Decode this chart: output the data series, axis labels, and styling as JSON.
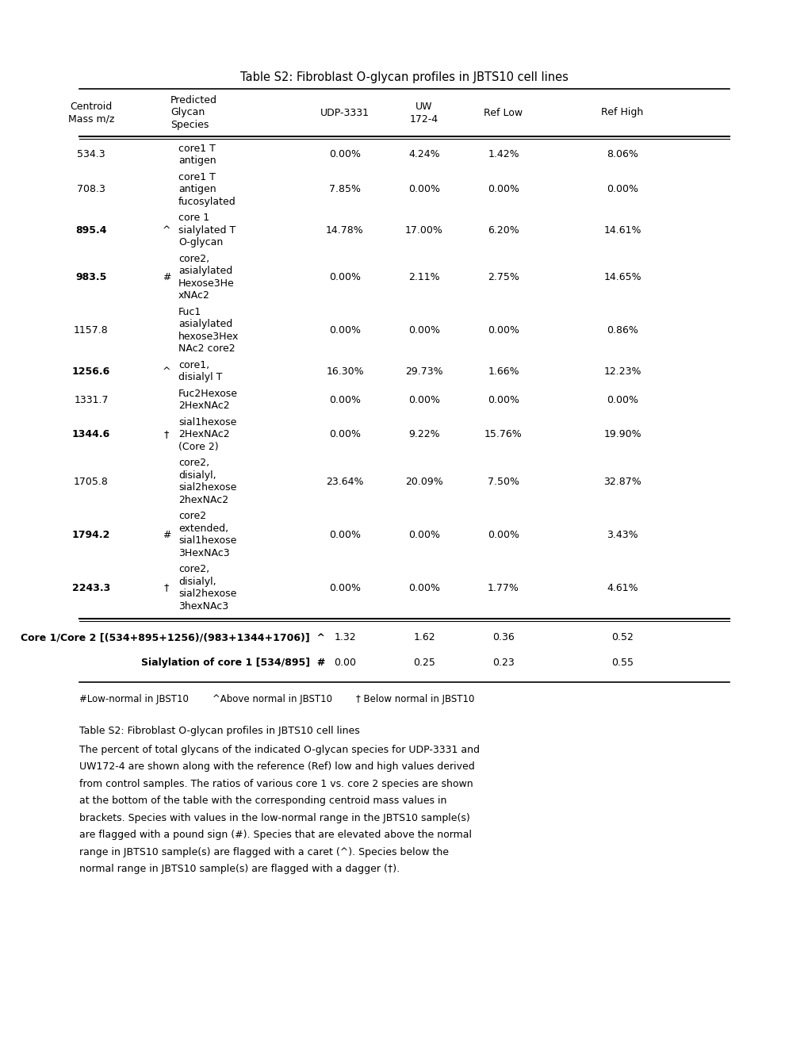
{
  "title": "Table S2: Fibroblast O-glycan profiles in JBTS10 cell lines",
  "rows": [
    {
      "mass": "534.3",
      "mass_bold": false,
      "flag": "",
      "species": "core1 T\nantigen",
      "udp": "0.00%",
      "uw": "4.24%",
      "ref_low": "1.42%",
      "ref_high": "8.06%"
    },
    {
      "mass": "708.3",
      "mass_bold": false,
      "flag": "",
      "species": "core1 T\nantigen\nfucosylated",
      "udp": "7.85%",
      "uw": "0.00%",
      "ref_low": "0.00%",
      "ref_high": "0.00%"
    },
    {
      "mass": "895.4",
      "mass_bold": true,
      "flag": "^",
      "species": "core 1\nsialylated T\nO-glycan",
      "udp": "14.78%",
      "uw": "17.00%",
      "ref_low": "6.20%",
      "ref_high": "14.61%"
    },
    {
      "mass": "983.5",
      "mass_bold": true,
      "flag": "#",
      "species": "core2,\nasialylated\nHexose3He\nxNAc2",
      "udp": "0.00%",
      "uw": "2.11%",
      "ref_low": "2.75%",
      "ref_high": "14.65%"
    },
    {
      "mass": "1157.8",
      "mass_bold": false,
      "flag": "",
      "species": "Fuc1\nasialylated\nhexose3Hex\nNAc2 core2",
      "udp": "0.00%",
      "uw": "0.00%",
      "ref_low": "0.00%",
      "ref_high": "0.86%"
    },
    {
      "mass": "1256.6",
      "mass_bold": true,
      "flag": "^",
      "species": "core1,\ndisialyl T",
      "udp": "16.30%",
      "uw": "29.73%",
      "ref_low": "1.66%",
      "ref_high": "12.23%"
    },
    {
      "mass": "1331.7",
      "mass_bold": false,
      "flag": "",
      "species": "Fuc2Hexose\n2HexNAc2",
      "udp": "0.00%",
      "uw": "0.00%",
      "ref_low": "0.00%",
      "ref_high": "0.00%"
    },
    {
      "mass": "1344.6",
      "mass_bold": true,
      "flag": "†",
      "species": "sial1hexose\n2HexNAc2\n(Core 2)",
      "udp": "0.00%",
      "uw": "9.22%",
      "ref_low": "15.76%",
      "ref_high": "19.90%"
    },
    {
      "mass": "1705.8",
      "mass_bold": false,
      "flag": "",
      "species": "core2,\ndisialyl,\nsial2hexose\n2hexNAc2",
      "udp": "23.64%",
      "uw": "20.09%",
      "ref_low": "7.50%",
      "ref_high": "32.87%"
    },
    {
      "mass": "1794.2",
      "mass_bold": true,
      "flag": "#",
      "species": "core2\nextended,\nsial1hexose\n3HexNAc3",
      "udp": "0.00%",
      "uw": "0.00%",
      "ref_low": "0.00%",
      "ref_high": "3.43%"
    },
    {
      "mass": "2243.3",
      "mass_bold": true,
      "flag": "†",
      "species": "core2,\ndisialyl,\nsial2hexose\n3hexNAc3",
      "udp": "0.00%",
      "uw": "0.00%",
      "ref_low": "1.77%",
      "ref_high": "4.61%"
    }
  ],
  "footer_rows": [
    {
      "label": "Core 1/Core 2 [(534+895+1256)/(983+1344+1706)]  ^",
      "udp": "1.32",
      "uw": "1.62",
      "ref_low": "0.36",
      "ref_high": "0.52"
    },
    {
      "label": "Sialylation of core 1 [534/895]  #",
      "udp": "0.00",
      "uw": "0.25",
      "ref_low": "0.23",
      "ref_high": "0.55"
    }
  ],
  "legend_line": "#Low-normal in JBST10        ^Above normal in JBST10        † Below normal in JBST10",
  "caption_title": "Table S2: Fibroblast O-glycan profiles in JBTS10 cell lines",
  "caption_body": [
    "The percent of total glycans of the indicated O-glycan species for UDP-3331 and",
    "UW172-4 are shown along with the reference (Ref) low and high values derived",
    "from control samples. The ratios of various core 1 vs. core 2 species are shown",
    "at the bottom of the table with the corresponding centroid mass values in",
    "brackets. Species with values in the low-normal range in the JBTS10 sample(s)",
    "are flagged with a pound sign (#). Species that are elevated above the normal",
    "range in JBTS10 sample(s) are flagged with a caret (^). Species below the",
    "normal range in JBTS10 sample(s) are flagged with a dagger (†)."
  ],
  "fig_width": 10.2,
  "fig_height": 13.2,
  "dpi": 100
}
